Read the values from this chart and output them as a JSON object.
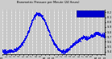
{
  "title": "Barometric Pressure per Minute (24 Hours)",
  "bg_color": "#cccccc",
  "plot_bg_color": "#c8c8c8",
  "dot_color": "#0000ee",
  "legend_color": "#0000cc",
  "ylim": [
    29.35,
    30.25
  ],
  "yticks": [
    29.4,
    29.5,
    29.6,
    29.7,
    29.8,
    29.9,
    30.0,
    30.1,
    30.2
  ],
  "ytick_labels": [
    "9.4",
    "9.5",
    "9.6",
    "9.7",
    "9.8",
    "9.9",
    "0.0",
    "0.1",
    "0.2"
  ],
  "num_points": 1440,
  "keypoints_hours": [
    0,
    1,
    2,
    3,
    4,
    5,
    6,
    7,
    8,
    9,
    10,
    11,
    12,
    13,
    14,
    15,
    16,
    17,
    18,
    19,
    20,
    21,
    22,
    23,
    24
  ],
  "keypoints_vals": [
    29.42,
    29.4,
    29.42,
    29.44,
    29.5,
    29.62,
    29.8,
    30.05,
    30.18,
    30.15,
    30.0,
    29.78,
    29.58,
    29.46,
    29.4,
    29.42,
    29.5,
    29.58,
    29.65,
    29.7,
    29.68,
    29.72,
    29.78,
    29.75,
    29.72
  ],
  "x_grid_hours": [
    0,
    1,
    2,
    3,
    4,
    5,
    6,
    7,
    8,
    9,
    10,
    11,
    12,
    13,
    14,
    15,
    16,
    17,
    18,
    19,
    20,
    21,
    22,
    23,
    24
  ],
  "x_tick_labels": [
    "12",
    "1",
    "2",
    "3",
    "4",
    "5",
    "6",
    "7",
    "8",
    "9",
    "10",
    "11",
    "12",
    "1",
    "2",
    "3",
    "4",
    "5",
    "6",
    "7",
    "8",
    "9",
    "10",
    "11",
    "12"
  ],
  "noise_scale": 0.018
}
